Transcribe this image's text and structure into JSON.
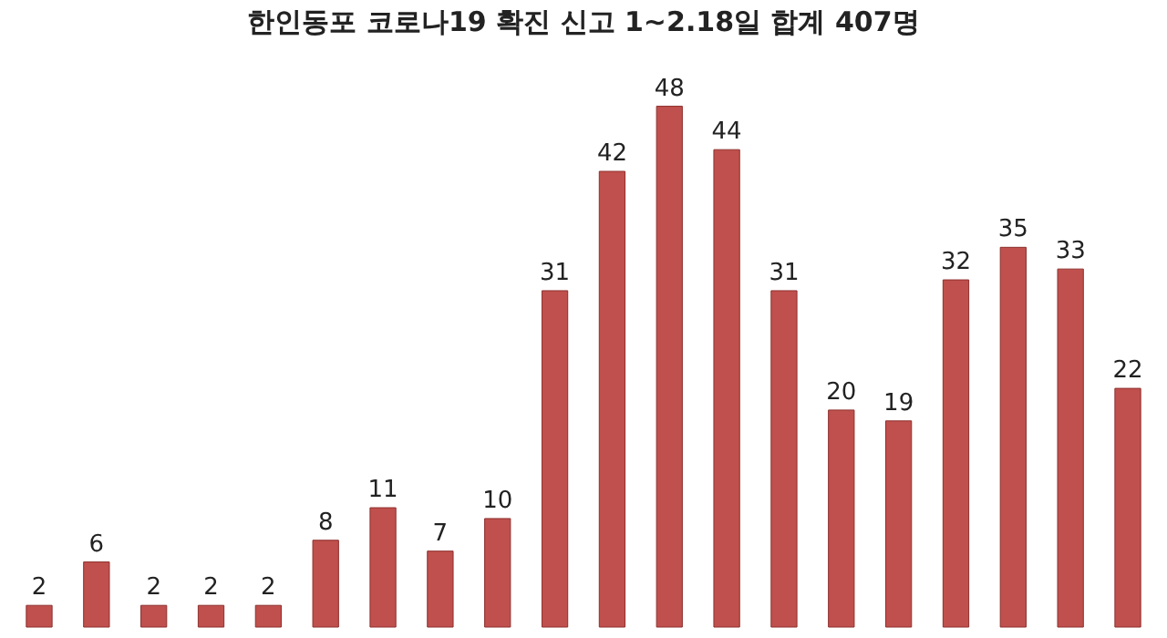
{
  "chart_data": {
    "type": "bar",
    "title": "한인동포 코로나19 확진 신고 1~2.18일 합계 407명",
    "categories": [
      null,
      null,
      null,
      null,
      null,
      null,
      null,
      null,
      null,
      null,
      null,
      null,
      null,
      null,
      null,
      null,
      null,
      null,
      null,
      null
    ],
    "series": [
      {
        "color": "#c0504d",
        "values": [
          2,
          6,
          2,
          2,
          2,
          8,
          11,
          7,
          10,
          31,
          42,
          48,
          44,
          31,
          20,
          19,
          32,
          35,
          33,
          22
        ]
      }
    ],
    "data_labels": true
  }
}
